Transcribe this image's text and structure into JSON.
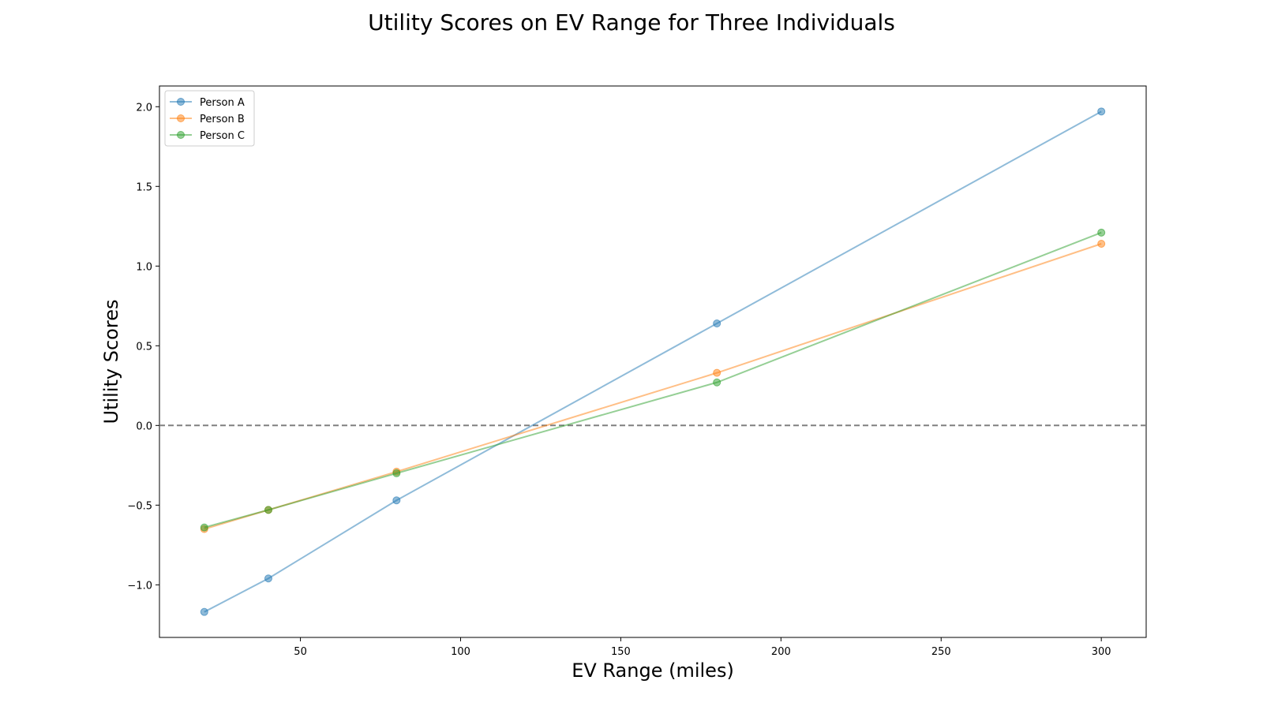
{
  "chart_data": {
    "type": "line",
    "title": "Utility Scores on EV Range for Three Individuals",
    "xlabel": "EV Range (miles)",
    "ylabel": "Utility Scores",
    "x": [
      20,
      40,
      80,
      180,
      300
    ],
    "xlim": [
      6,
      314
    ],
    "ylim": [
      -1.33,
      2.13
    ],
    "xticks": [
      50,
      100,
      150,
      200,
      250,
      300
    ],
    "yticks": [
      -1.0,
      -0.5,
      0.0,
      0.5,
      1.0,
      1.5,
      2.0
    ],
    "ytick_labels": [
      "−1.0",
      "−0.5",
      "0.0",
      "0.5",
      "1.0",
      "1.5",
      "2.0"
    ],
    "reference_line": {
      "y": 0.0,
      "style": "dashed",
      "color": "#808080"
    },
    "legend_position": "upper-left",
    "grid": false,
    "series": [
      {
        "name": "Person A",
        "color": "#1f77b4",
        "values": [
          -1.17,
          -0.96,
          -0.47,
          0.64,
          1.97
        ]
      },
      {
        "name": "Person B",
        "color": "#ff7f0e",
        "values": [
          -0.65,
          -0.53,
          -0.29,
          0.33,
          1.14
        ]
      },
      {
        "name": "Person C",
        "color": "#2ca02c",
        "values": [
          -0.64,
          -0.53,
          -0.3,
          0.27,
          1.21
        ]
      }
    ]
  }
}
